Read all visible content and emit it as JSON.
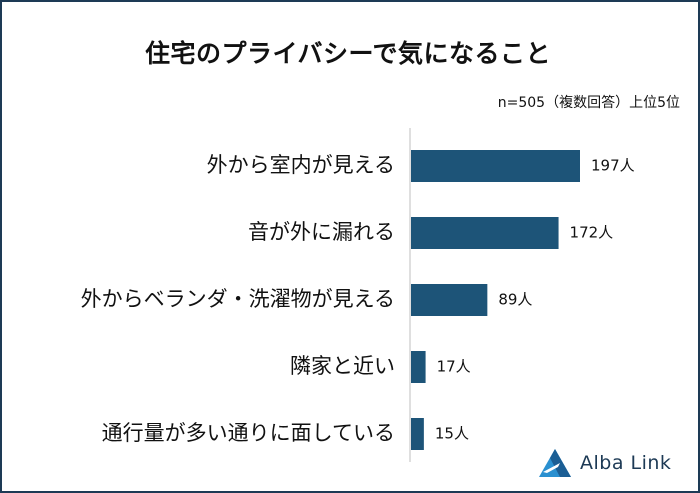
{
  "chart_data": {
    "type": "bar",
    "orientation": "horizontal",
    "title": "住宅のプライバシーで気になること",
    "note": "n=505（複数回答）上位5位",
    "categories": [
      "外から室内が見える",
      "音が外に漏れる",
      "外からベランダ・洗濯物が見える",
      "隣家と近い",
      "通行量が多い通りに面している"
    ],
    "values": [
      197,
      172,
      89,
      17,
      15
    ],
    "value_labels": [
      "197人",
      "172人",
      "89人",
      "17人",
      "15人"
    ],
    "bar_color": "#1d5478",
    "grid": false
  },
  "brand": {
    "name": "Alba Link",
    "color": "#1d3a55"
  }
}
